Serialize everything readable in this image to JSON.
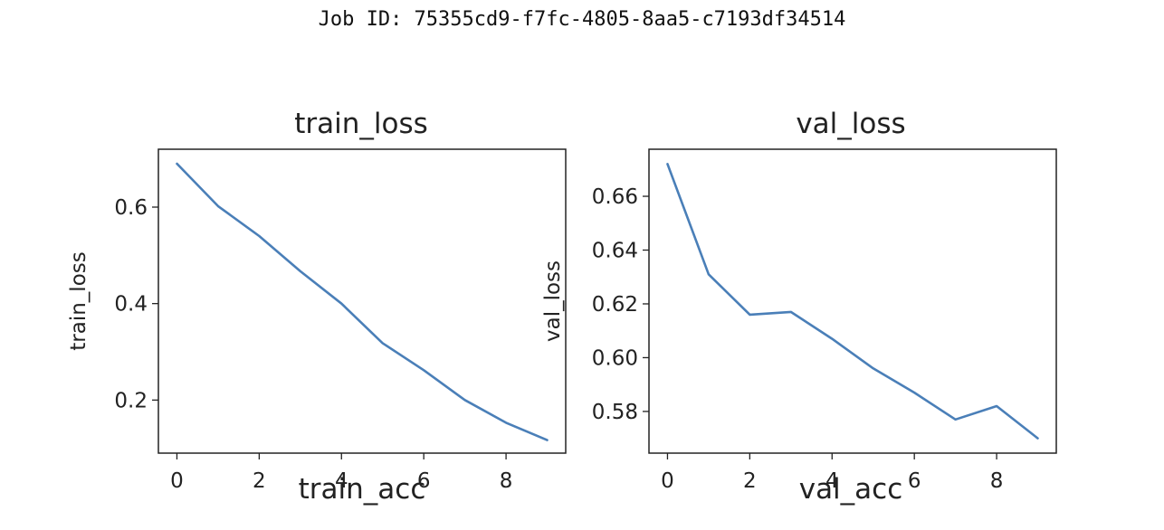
{
  "header": {
    "job_id_label": "Job ID: 75355cd9-f7fc-4805-8aa5-c7193df34514"
  },
  "colors": {
    "line": "#4a7fb8",
    "axes": "#222222",
    "background": "#ffffff",
    "panel": "#f5f5f5"
  },
  "chart_data": [
    {
      "type": "line",
      "title": "train_loss",
      "xlabel": "",
      "ylabel": "train_loss",
      "xlim": [
        -0.45,
        9.45
      ],
      "ylim": [
        0.09,
        0.72
      ],
      "xticks": [
        0,
        2,
        4,
        6,
        8
      ],
      "yticks": [
        0.2,
        0.4,
        0.6
      ],
      "ytick_labels": [
        "0.2",
        "0.4",
        "0.6"
      ],
      "x": [
        0,
        1,
        2,
        3,
        4,
        5,
        6,
        7,
        8,
        9
      ],
      "series": [
        {
          "values": [
            0.69,
            0.602,
            0.54,
            0.467,
            0.4,
            0.318,
            0.262,
            0.2,
            0.153,
            0.117
          ]
        }
      ]
    },
    {
      "type": "line",
      "title": "val_loss",
      "xlabel": "",
      "ylabel": "val_loss",
      "xlim": [
        -0.45,
        9.45
      ],
      "ylim": [
        0.5645,
        0.6775
      ],
      "xticks": [
        0,
        2,
        4,
        6,
        8
      ],
      "yticks": [
        0.58,
        0.6,
        0.62,
        0.64,
        0.66
      ],
      "ytick_labels": [
        "0.58",
        "0.60",
        "0.62",
        "0.64",
        "0.66"
      ],
      "x": [
        0,
        1,
        2,
        3,
        4,
        5,
        6,
        7,
        8,
        9
      ],
      "series": [
        {
          "values": [
            0.672,
            0.631,
            0.616,
            0.617,
            0.607,
            0.596,
            0.587,
            0.577,
            0.582,
            0.57
          ]
        }
      ]
    },
    {
      "type": "line",
      "title": "train_acc"
    },
    {
      "type": "line",
      "title": "val_acc"
    }
  ]
}
